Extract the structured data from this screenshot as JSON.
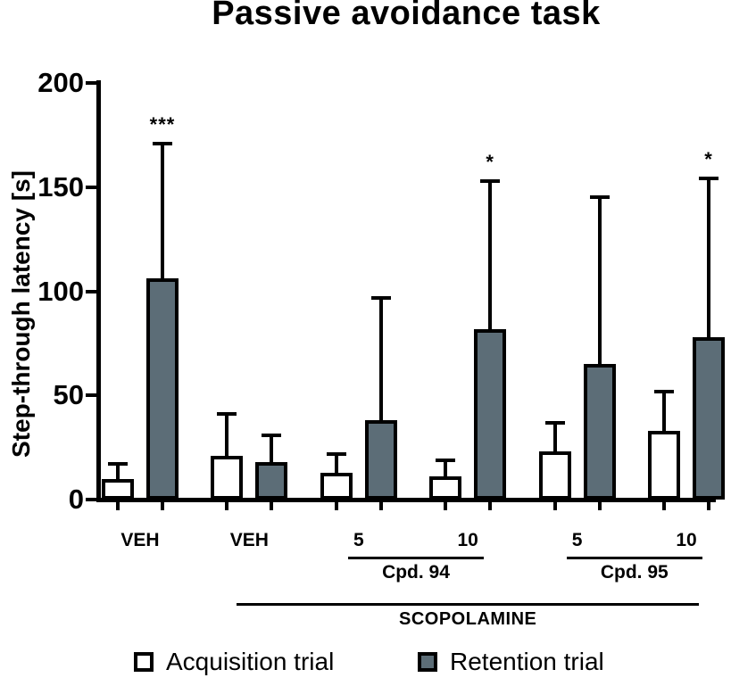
{
  "chart_data": {
    "type": "bar",
    "title": "Passive avoidance task",
    "ylabel": "Step-through latency [s]",
    "xlabel": "",
    "ylim": [
      0,
      200
    ],
    "yticks": [
      0,
      50,
      100,
      150,
      200
    ],
    "grid": false,
    "legend_position": "bottom",
    "categories": [
      "VEH",
      "VEH",
      "5",
      "10",
      "5",
      "10"
    ],
    "series": [
      {
        "name": "Acquisition trial",
        "color": "#ffffff",
        "values": [
          10,
          21,
          13,
          11,
          23,
          33
        ],
        "errors_upper": [
          17,
          41,
          22,
          19,
          37,
          52
        ]
      },
      {
        "name": "Retention trial",
        "color": "#5c6d77",
        "values": [
          106,
          18,
          38,
          82,
          65,
          78
        ],
        "errors_upper": [
          171,
          31,
          97,
          153,
          145,
          154
        ]
      }
    ],
    "significance_on_retention": [
      "***",
      "",
      "",
      "*",
      "",
      "*"
    ],
    "group_brackets": [
      {
        "label": "Cpd. 94",
        "from": 2,
        "to": 3
      },
      {
        "label": "Cpd. 95",
        "from": 4,
        "to": 5
      }
    ],
    "axis_bracket": {
      "label": "SCOPOLAMINE",
      "from": 1,
      "to": 5
    }
  }
}
